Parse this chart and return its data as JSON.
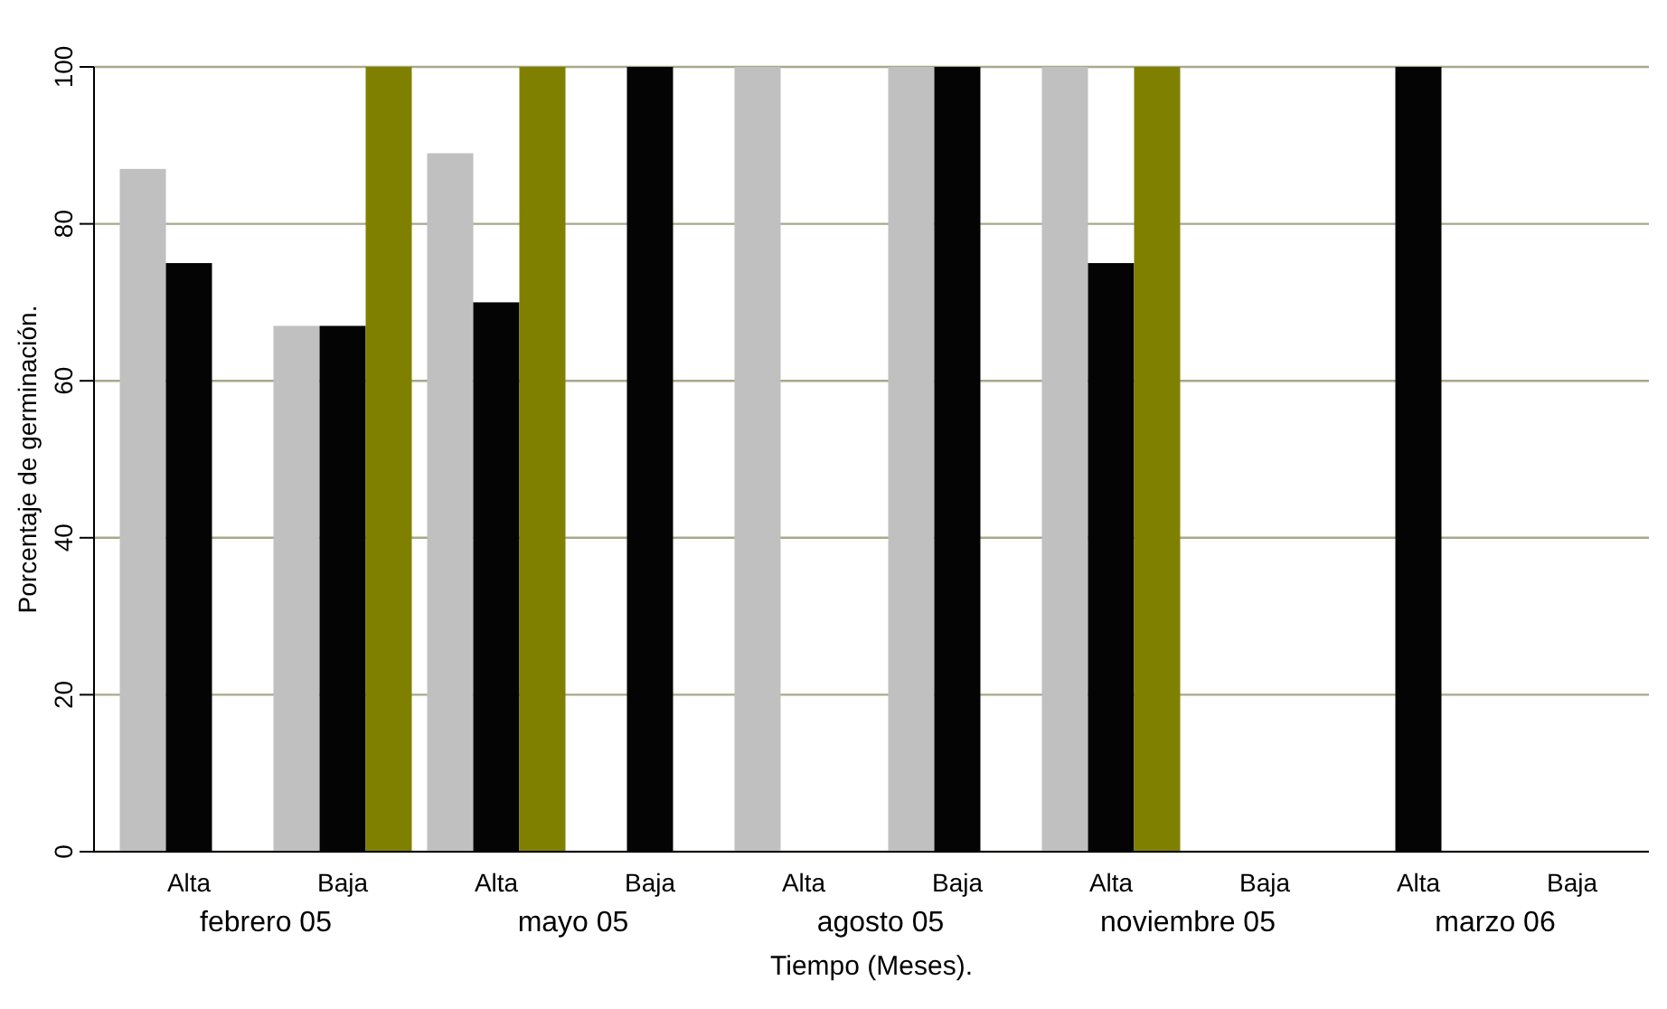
{
  "chart_data": {
    "type": "bar",
    "xlabel": "Tiempo (Meses).",
    "ylabel": "Porcentaje de germinación.",
    "categories": [
      "Alta",
      "Baja",
      "Alta",
      "Baja",
      "Alta",
      "Baja",
      "Alta",
      "Baja",
      "Alta",
      "Baja"
    ],
    "series": [
      {
        "color": "#c0c0c0",
        "values": [
          87,
          67,
          89,
          null,
          100,
          100,
          100,
          null,
          null,
          null
        ]
      },
      {
        "color": "#040404",
        "values": [
          75,
          67,
          70,
          100,
          null,
          100,
          75,
          null,
          100,
          null
        ]
      },
      {
        "color": "#808000",
        "values": [
          null,
          100,
          100,
          null,
          null,
          null,
          100,
          null,
          null,
          null
        ]
      }
    ],
    "annotations": [
      "febrero 05",
      "mayo 05",
      "agosto 05",
      "noviembre 05",
      "marzo 06"
    ],
    "ylim": [
      0,
      100
    ],
    "yticks": [
      0,
      20,
      40,
      60,
      80,
      100
    ],
    "grid": "y"
  }
}
